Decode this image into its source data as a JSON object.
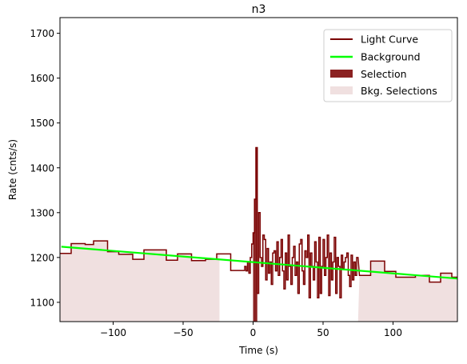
{
  "chart_data": {
    "type": "line",
    "title": "n3",
    "xlabel": "Time (s)",
    "ylabel": "Rate (cnts/s)",
    "xlim": [
      -138,
      146
    ],
    "ylim": [
      1057,
      1735
    ],
    "xticks": [
      -100,
      -50,
      0,
      50,
      100
    ],
    "yticks": [
      1100,
      1200,
      1300,
      1400,
      1500,
      1600,
      1700
    ],
    "grid": false,
    "legend_position": "top-right",
    "legend": [
      {
        "label": "Light Curve",
        "kind": "line",
        "color": "#7a0000"
      },
      {
        "label": "Background",
        "kind": "line",
        "color": "#00ff00"
      },
      {
        "label": "Selection",
        "kind": "patch",
        "color": "#8b2222"
      },
      {
        "label": "Bkg. Selections",
        "kind": "patch",
        "color": "#f0e0e0"
      }
    ],
    "light_curve_coarse": [
      {
        "x0": -138,
        "x1": -130,
        "y": 1209
      },
      {
        "x0": -130,
        "x1": -120,
        "y": 1231
      },
      {
        "x0": -120,
        "x1": -114,
        "y": 1229
      },
      {
        "x0": -114,
        "x1": -104,
        "y": 1237
      },
      {
        "x0": -104,
        "x1": -96,
        "y": 1213
      },
      {
        "x0": -96,
        "x1": -86,
        "y": 1207
      },
      {
        "x0": -86,
        "x1": -78,
        "y": 1196
      },
      {
        "x0": -78,
        "x1": -62,
        "y": 1217
      },
      {
        "x0": -62,
        "x1": -54,
        "y": 1194
      },
      {
        "x0": -54,
        "x1": -44,
        "y": 1208
      },
      {
        "x0": -44,
        "x1": -34,
        "y": 1193
      },
      {
        "x0": -34,
        "x1": -26,
        "y": 1196
      },
      {
        "x0": -26,
        "x1": -16,
        "y": 1208
      },
      {
        "x0": -16,
        "x1": -6,
        "y": 1171
      },
      {
        "x0": 76,
        "x1": 84,
        "y": 1160
      },
      {
        "x0": 84,
        "x1": 94,
        "y": 1192
      },
      {
        "x0": 94,
        "x1": 102,
        "y": 1169
      },
      {
        "x0": 102,
        "x1": 116,
        "y": 1156
      },
      {
        "x0": 116,
        "x1": 126,
        "y": 1160
      },
      {
        "x0": 126,
        "x1": 134,
        "y": 1145
      },
      {
        "x0": 134,
        "x1": 142,
        "y": 1165
      },
      {
        "x0": 142,
        "x1": 146,
        "y": 1156
      }
    ],
    "light_curve_fine": {
      "x_start": -6,
      "bin": 1,
      "y": [
        1180,
        1170,
        1190,
        1165,
        1200,
        1230,
        1255,
        1330,
        1445,
        1120,
        1300,
        1200,
        1180,
        1250,
        1240,
        1150,
        1220,
        1165,
        1190,
        1140,
        1210,
        1215,
        1170,
        1235,
        1160,
        1200,
        1240,
        1170,
        1130,
        1210,
        1150,
        1250,
        1180,
        1140,
        1200,
        1225,
        1160,
        1190,
        1120,
        1230,
        1240,
        1170,
        1140,
        1215,
        1200,
        1250,
        1110,
        1210,
        1180,
        1150,
        1235,
        1190,
        1110,
        1245,
        1120,
        1180,
        1240,
        1160,
        1200,
        1250,
        1115,
        1210,
        1150,
        1190,
        1245,
        1120,
        1200,
        1180,
        1110,
        1205,
        1175,
        1190,
        1200,
        1210,
        1160,
        1135,
        1205,
        1150,
        1190,
        1160,
        1200
      ]
    },
    "background": {
      "x": [
        -137,
        146
      ],
      "y": [
        1224,
        1153
      ]
    },
    "selection": {
      "x": [
        0,
        3
      ],
      "y": [
        1057,
        1445
      ]
    },
    "bkg_selections": [
      {
        "x": [
          -138,
          -24
        ]
      },
      {
        "x": [
          75,
          146
        ]
      }
    ]
  }
}
